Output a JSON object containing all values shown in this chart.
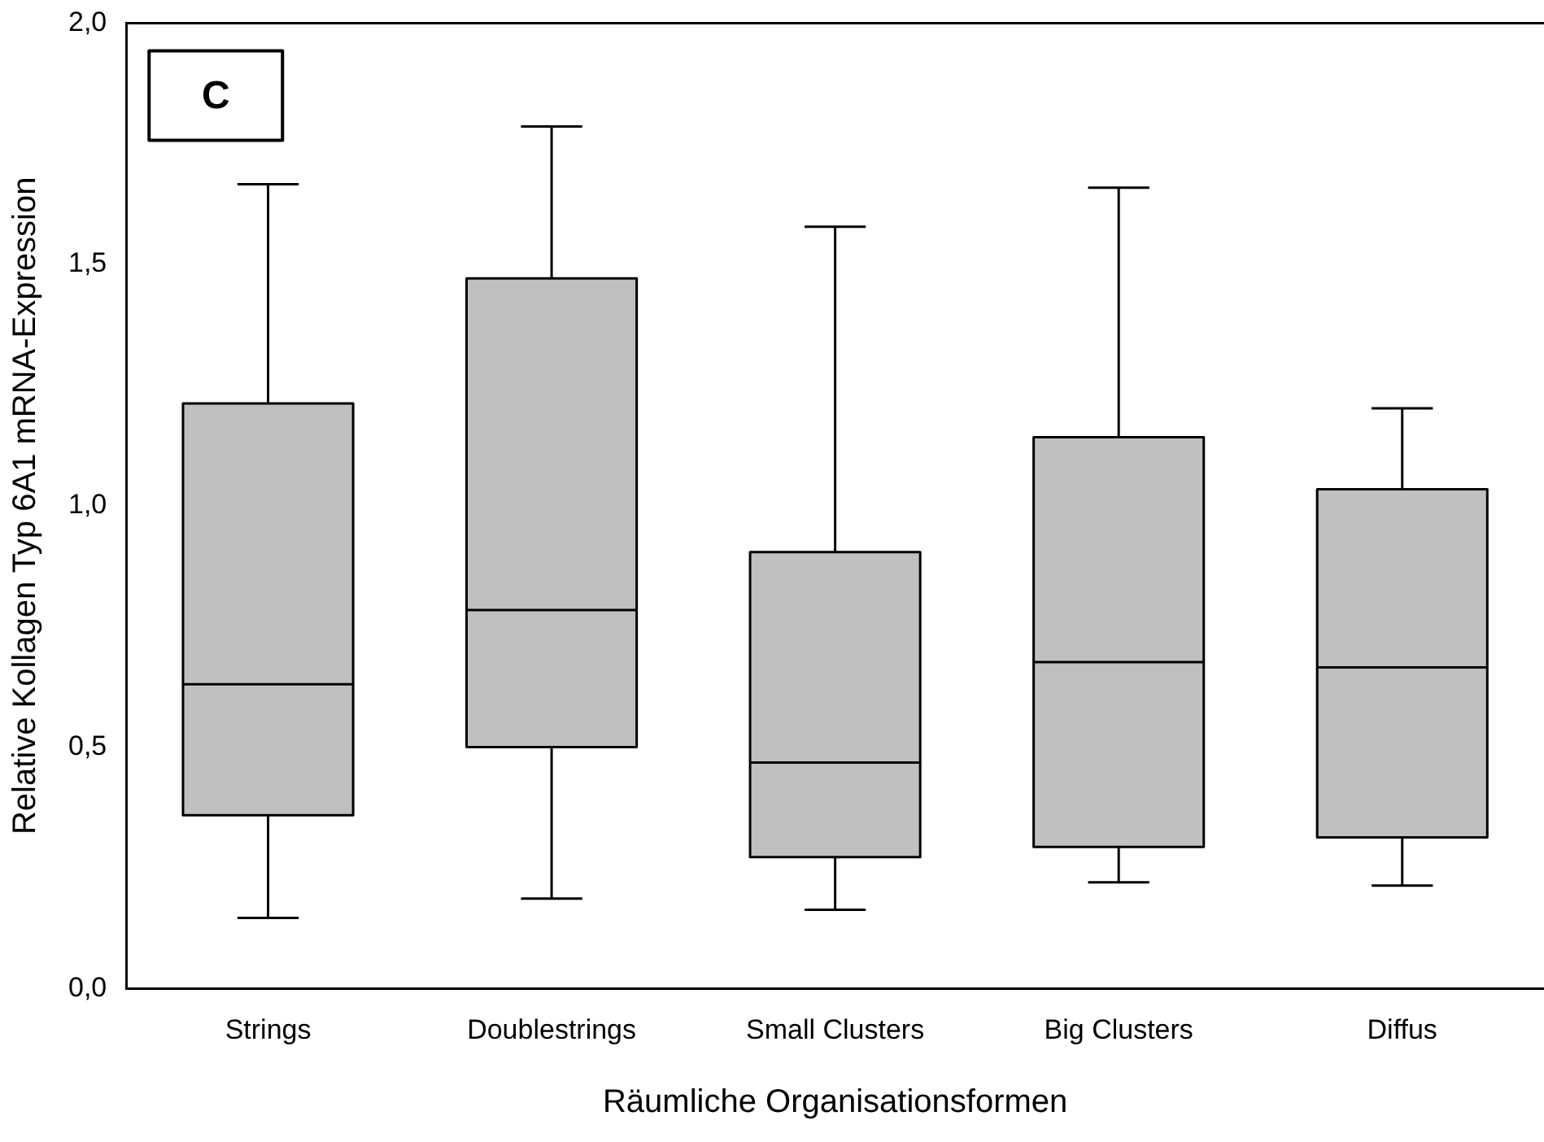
{
  "chart_data": {
    "type": "box",
    "xlabel": "Räumliche Organisationsformen",
    "ylabel": "Relative Kollagen Typ 6A1 mRNA-Expression",
    "annotations": [
      "C"
    ],
    "categories": [
      "Strings",
      "Doublestrings",
      "Small Clusters",
      "Big Clusters",
      "Diffus"
    ],
    "color": "#c0c0c0",
    "boxes": [
      {
        "low": 0.146,
        "q1": 0.359,
        "median": 0.63,
        "q3": 1.212,
        "high": 1.666
      },
      {
        "low": 0.186,
        "q1": 0.5,
        "median": 0.784,
        "q3": 1.471,
        "high": 1.786
      },
      {
        "low": 0.163,
        "q1": 0.272,
        "median": 0.468,
        "q3": 0.904,
        "high": 1.578
      },
      {
        "low": 0.22,
        "q1": 0.293,
        "median": 0.676,
        "q3": 1.142,
        "high": 1.659
      },
      {
        "low": 0.213,
        "q1": 0.313,
        "median": 0.665,
        "q3": 1.034,
        "high": 1.202
      }
    ],
    "ylim": [
      0,
      2
    ],
    "yticks": [
      {
        "value": 0,
        "label": "0,0"
      },
      {
        "value": 0.5,
        "label": "0,5"
      },
      {
        "value": 1,
        "label": "1,0"
      },
      {
        "value": 1.5,
        "label": "1,5"
      },
      {
        "value": 2,
        "label": "2,0"
      }
    ],
    "grid": false,
    "legend": false
  }
}
